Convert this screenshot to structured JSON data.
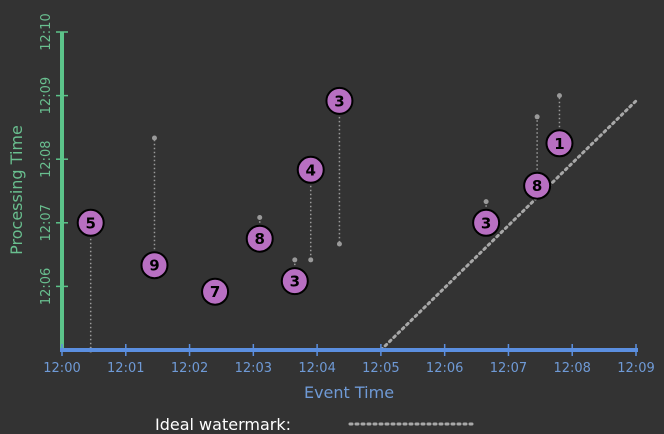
{
  "chart_data": {
    "type": "scatter",
    "xlabel": "Event Time",
    "ylabel": "Processing Time",
    "x_ticks": [
      "12:00",
      "12:01",
      "12:02",
      "12:03",
      "12:04",
      "12:05",
      "12:06",
      "12:07",
      "12:08",
      "12:09"
    ],
    "y_ticks": [
      "12:06",
      "12:07",
      "12:08",
      "12:09",
      "12:10"
    ],
    "xlim": [
      "12:00",
      "12:09"
    ],
    "ylim": [
      "12:05",
      "12:10"
    ],
    "legend": {
      "label": "Ideal watermark:",
      "placement": "bottom-center"
    },
    "watermark_line": {
      "from": {
        "x": "12:05:00",
        "y": "12:05:00"
      },
      "to": {
        "x": "12:09:00",
        "y": "12:08:55"
      }
    },
    "points": [
      {
        "value": "5",
        "event_time": "12:00:27",
        "processing_time": "12:07:00",
        "drop_to": "12:05:00"
      },
      {
        "value": "9",
        "event_time": "12:01:27",
        "processing_time": "12:06:20",
        "drop_to": "12:08:20"
      },
      {
        "value": "7",
        "event_time": "12:02:24",
        "processing_time": "12:05:55",
        "drop_to": "12:05:45"
      },
      {
        "value": "8",
        "event_time": "12:03:06",
        "processing_time": "12:06:45",
        "drop_to": "12:07:05"
      },
      {
        "value": "3",
        "event_time": "12:03:39",
        "processing_time": "12:06:05",
        "drop_to": "12:06:25"
      },
      {
        "value": "4",
        "event_time": "12:03:54",
        "processing_time": "12:07:50",
        "drop_to": "12:06:25"
      },
      {
        "value": "3",
        "event_time": "12:04:21",
        "processing_time": "12:08:55",
        "drop_to": "12:06:40"
      },
      {
        "value": "3",
        "event_time": "12:06:39",
        "processing_time": "12:07:00",
        "drop_to": "12:07:20"
      },
      {
        "value": "8",
        "event_time": "12:07:27",
        "processing_time": "12:07:35",
        "drop_to": "12:08:40"
      },
      {
        "value": "1",
        "event_time": "12:07:48",
        "processing_time": "12:08:15",
        "drop_to": "12:09:00"
      }
    ],
    "colors": {
      "background": "#333333",
      "x_axis": "#5b8fe0",
      "y_axis": "#5cc48a",
      "point_fill": "#b86fc2",
      "point_stroke": "#000000",
      "label": "#000000",
      "drop_line": "#9a9a9a",
      "watermark": "#a8a8a8"
    }
  }
}
